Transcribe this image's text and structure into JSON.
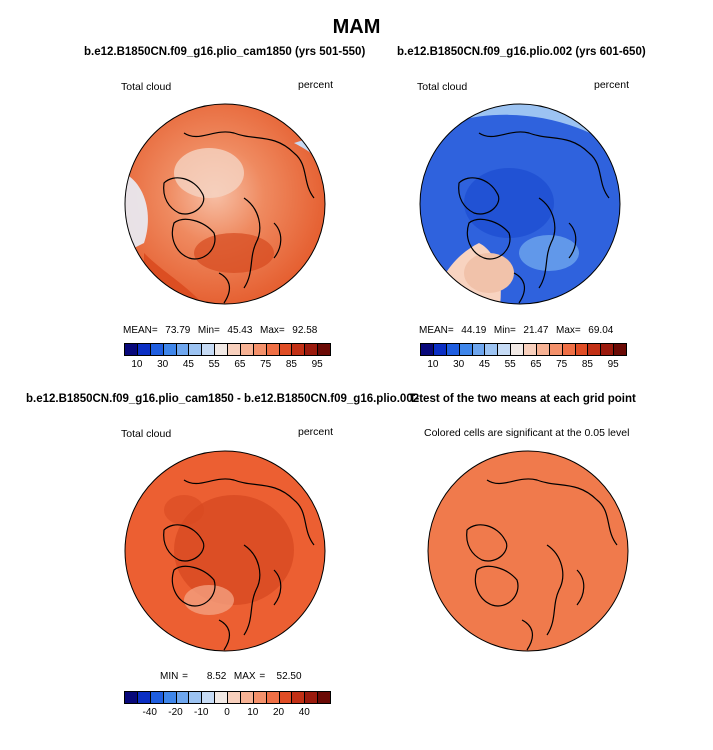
{
  "figure": {
    "title": "MAM"
  },
  "panels": [
    {
      "title": "b.e12.B1850CN.f09_g16.plio_cam1850 (yrs 501-550)",
      "left_label": "Total cloud",
      "right_label": "percent",
      "stats": {
        "mean_label": "MEAN=",
        "mean": "73.79",
        "min_label": "Min=",
        "min": "45.43",
        "max_label": "Max=",
        "max": "92.58"
      }
    },
    {
      "title": "b.e12.B1850CN.f09_g16.plio.002 (yrs 601-650)",
      "left_label": "Total cloud",
      "right_label": "percent",
      "stats": {
        "mean_label": "MEAN=",
        "mean": "44.19",
        "min_label": "Min=",
        "min": "21.47",
        "max_label": "Max=",
        "max": "69.04"
      }
    },
    {
      "title": "b.e12.B1850CN.f09_g16.plio_cam1850 - b.e12.B1850CN.f09_g16.plio.002",
      "left_label": "Total cloud",
      "right_label": "percent",
      "stats": {
        "min_label": "MIN =",
        "min": "8.52",
        "max_label": "MAX =",
        "max": "52.50"
      }
    },
    {
      "title": "T-test of the two means at each grid point",
      "subtitle": "Colored cells are significant at the 0.05 level"
    }
  ],
  "colorbars": {
    "abs": {
      "ticks": [
        "10",
        "30",
        "45",
        "55",
        "65",
        "75",
        "85",
        "95"
      ],
      "colors": [
        "#08087a",
        "#0b2fc4",
        "#1f5ee0",
        "#3f86ea",
        "#6ea6ee",
        "#9cc3f2",
        "#c6dbf5",
        "#f1e9e5",
        "#f8d0bd",
        "#f7b294",
        "#f4916b",
        "#ef6f45",
        "#e04d25",
        "#c23015",
        "#9b1a0d",
        "#6b0a05"
      ]
    },
    "diff": {
      "ticks": [
        "-40",
        "-20",
        "-10",
        "0",
        "10",
        "20",
        "40"
      ],
      "colors": [
        "#08087a",
        "#0b2fc4",
        "#1f5ee0",
        "#3f86ea",
        "#6ea6ee",
        "#9cc3f2",
        "#c6dbf5",
        "#f1e9e5",
        "#f8d0bd",
        "#f7b294",
        "#f4916b",
        "#ef6f45",
        "#e04d25",
        "#c23015",
        "#9b1a0d",
        "#6b0a05"
      ]
    }
  },
  "map_fill": {
    "panel1": {
      "base": "#ea6a40"
    },
    "panel2": {
      "base": "#2f62dd"
    },
    "panel3": {
      "base": "#ec5f32"
    },
    "panel4": {
      "base": "#f07a4c"
    }
  }
}
